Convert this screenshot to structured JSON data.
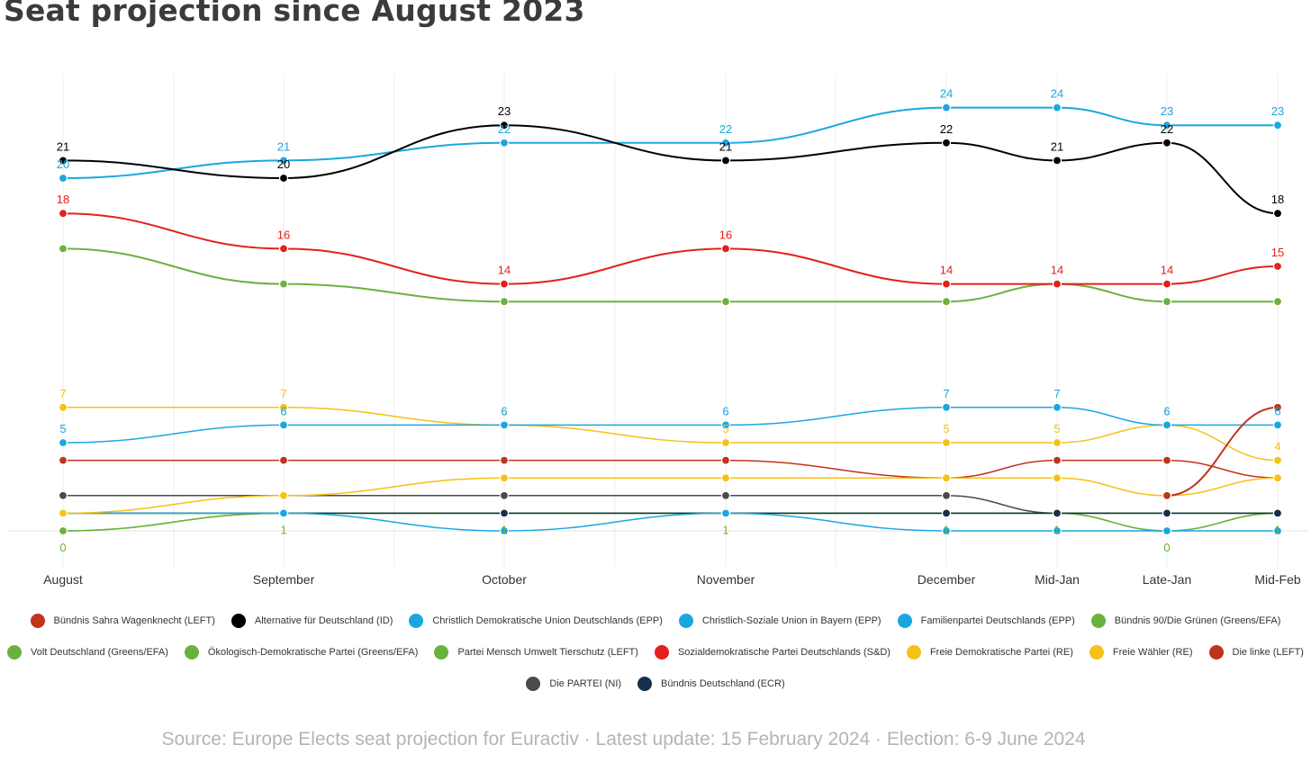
{
  "title": "Seat projection since August 2023",
  "source": "Source: Europe Elects seat projection for Euractiv · Latest update: 15 February 2024 ·  Election: 6-9 June 2024",
  "chart_data": {
    "type": "line",
    "title": "Seat projection since August 2023",
    "categories": [
      "August",
      "September",
      "October",
      "November",
      "December",
      "Mid-Jan",
      "Late-Jan",
      "Mid-Feb"
    ],
    "ylim": [
      0,
      25
    ],
    "grid": true,
    "legend_position": "bottom",
    "series": [
      {
        "name": "Bündnis Sahra Wagenknecht (LEFT)",
        "color": "#c0341b",
        "values": [
          null,
          null,
          null,
          null,
          null,
          null,
          2,
          7
        ]
      },
      {
        "name": "Alternative für Deutschland (ID)",
        "color": "#000000",
        "values": [
          21,
          20,
          23,
          21,
          22,
          21,
          22,
          18
        ]
      },
      {
        "name": "Christlich Demokratische Union Deutschlands (EPP)",
        "color": "#1aa7e0",
        "values": [
          20,
          21,
          22,
          22,
          24,
          24,
          23,
          23
        ]
      },
      {
        "name": "Christlich-Soziale Union in Bayern (EPP)",
        "color": "#1aa7e0",
        "values": [
          5,
          6,
          6,
          6,
          7,
          7,
          6,
          6
        ]
      },
      {
        "name": "Familienpartei Deutschlands (EPP)",
        "color": "#1aa7e0",
        "values": [
          1,
          1,
          0,
          1,
          0,
          0,
          0,
          0
        ]
      },
      {
        "name": "Bündnis 90/Die Grünen (Greens/EFA)",
        "color": "#6ab23e",
        "values": [
          16,
          14,
          13,
          13,
          13,
          14,
          13,
          13
        ]
      },
      {
        "name": "Volt Deutschland (Greens/EFA)",
        "color": "#6ab23e",
        "values": [
          0,
          1,
          1,
          1,
          1,
          1,
          0,
          1
        ]
      },
      {
        "name": "Ökologisch-Demokratische Partei (Greens/EFA)",
        "color": "#6ab23e",
        "values": [
          1,
          1,
          1,
          1,
          1,
          1,
          1,
          1
        ]
      },
      {
        "name": "Partei Mensch Umwelt Tierschutz (LEFT)",
        "color": "#6ab23e",
        "values": [
          0,
          1,
          1,
          1,
          1,
          1,
          0,
          1
        ]
      },
      {
        "name": "Sozialdemokratische Partei Deutschlands (S&D)",
        "color": "#e3201b",
        "values": [
          18,
          16,
          14,
          16,
          14,
          14,
          14,
          15
        ]
      },
      {
        "name": "Freie Demokratische Partei (RE)",
        "color": "#f5c117",
        "values": [
          7,
          7,
          6,
          5,
          5,
          5,
          6,
          4
        ]
      },
      {
        "name": "Freie Wähler (RE)",
        "color": "#f5c117",
        "values": [
          1,
          2,
          3,
          3,
          3,
          3,
          2,
          3
        ]
      },
      {
        "name": "Die linke (LEFT)",
        "color": "#c0341b",
        "values": [
          4,
          4,
          4,
          4,
          3,
          4,
          4,
          3
        ]
      },
      {
        "name": "Die PARTEI (NI)",
        "color": "#4a4a4a",
        "values": [
          2,
          2,
          2,
          2,
          2,
          1,
          1,
          1
        ]
      },
      {
        "name": "Bündnis Deutschland (ECR)",
        "color": "#14304d",
        "values": [
          1,
          1,
          1,
          1,
          1,
          1,
          1,
          1
        ]
      }
    ]
  }
}
